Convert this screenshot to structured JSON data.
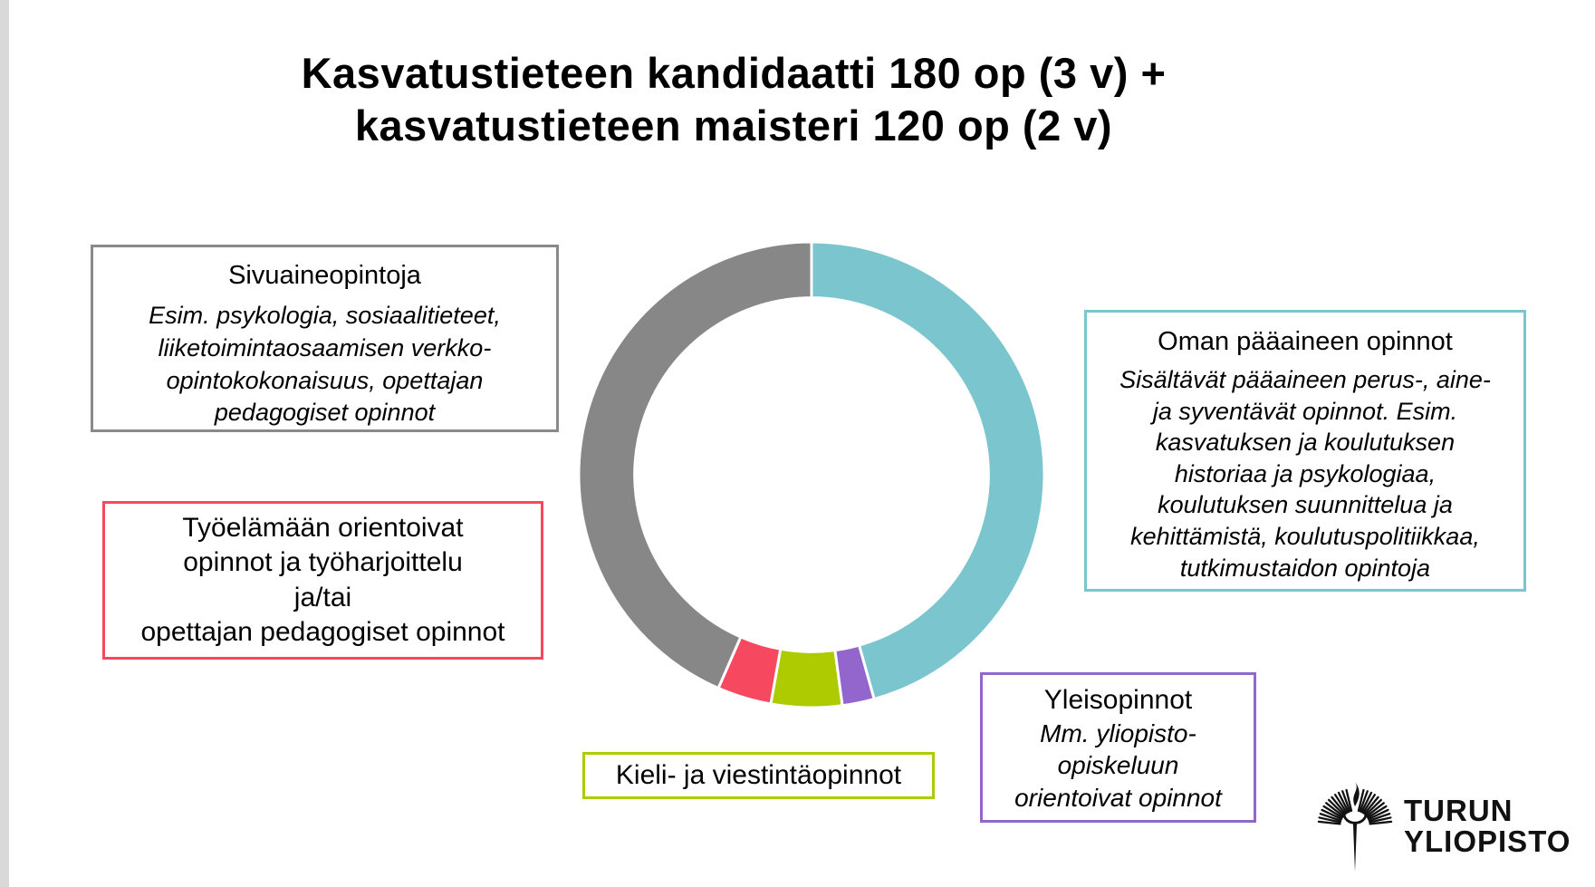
{
  "slide": {
    "title": "Kasvatustieteen kandidaatti 180 op (3 v) +\nkasvatustieteen maisteri 120 op (2 v)"
  },
  "chart_data": {
    "type": "pie",
    "variant": "donut",
    "title": "Kasvatustieteen kandidaatti 180 op (3 v) + kasvatustieteen maisteri 120 op (2 v)",
    "legend_position": "callout-boxes-around-chart",
    "start_angle_deg": 0,
    "direction": "clockwise",
    "gap_color": "#ffffff",
    "inner_radius_ratio": 0.76,
    "segments": [
      {
        "key": "major-studies",
        "label": "Oman pääaineen opinnot",
        "share_pct": 45.7,
        "span_deg": 164.4,
        "color": "#7BC6CE"
      },
      {
        "key": "general-studies",
        "label": "Yleisopinnot",
        "share_pct": 2.2,
        "span_deg": 8.0,
        "color": "#9366CE"
      },
      {
        "key": "language-studies",
        "label": "Kieli- ja viestintäopinnot",
        "share_pct": 4.9,
        "span_deg": 17.7,
        "color": "#ADCB00"
      },
      {
        "key": "work-life-studies",
        "label": "Työelämään orientoivat opinnot ja työharjoittelu ja/tai opettajan pedagogiset opinnot",
        "share_pct": 3.8,
        "span_deg": 13.5,
        "color": "#F6485E"
      },
      {
        "key": "minor-studies",
        "label": "Sivuaineopintoja",
        "share_pct": 43.4,
        "span_deg": 156.4,
        "color": "#878787"
      }
    ]
  },
  "callouts": {
    "minor_studies": {
      "title": "Sivuaineopintoja",
      "body": "Esim. psykologia, sosiaalitieteet,\nliiketoimintaosaamisen verkko-\nopintokokonaisuus, opettajan\npedagogiset opinnot",
      "border_color": "#8A8A8A"
    },
    "work_life_studies": {
      "label": "Työelämään orientoivat\nopinnot ja työharjoittelu\nja/tai\nopettajan pedagogiset opinnot",
      "border_color": "#F6485E"
    },
    "major_studies": {
      "title": "Oman pääaineen opinnot",
      "body": "Sisältävät pääaineen perus-, aine-\nja syventävät opinnot. Esim.\nkasvatuksen ja koulutuksen\nhistoriaa ja psykologiaa,\nkoulutuksen suunnittelua ja\nkehittämistä, koulutuspolitiikkaa,\ntutkimustaidon opintoja",
      "border_color": "#7BC6CE"
    },
    "general_studies": {
      "title": "Yleisopinnot",
      "body": "Mm. yliopisto-\nopiskeluun\norientoivat opinnot",
      "border_color": "#9366CE"
    },
    "language_studies": {
      "label": "Kieli- ja viestintäopinnot",
      "border_color": "#ADCB00"
    }
  },
  "logo": {
    "line1": "TURUN",
    "line2": "YLIOPISTO"
  }
}
